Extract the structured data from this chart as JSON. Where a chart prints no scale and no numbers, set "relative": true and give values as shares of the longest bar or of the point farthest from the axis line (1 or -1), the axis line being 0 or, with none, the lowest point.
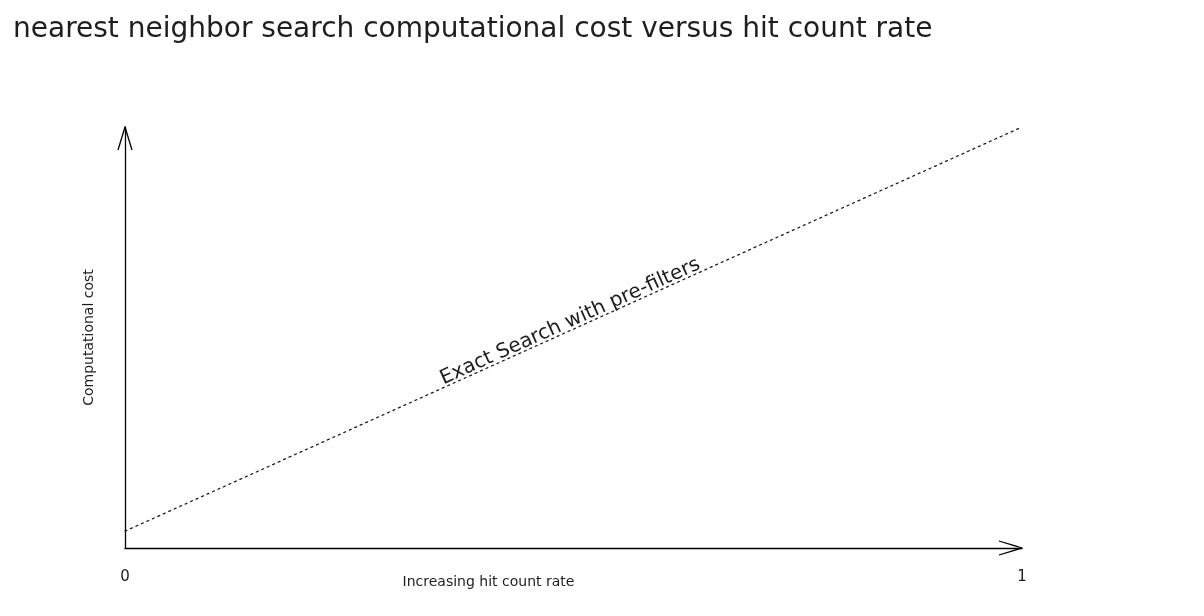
{
  "chart_data": {
    "type": "line",
    "title": "nearest neighbor search computational cost versus hit count rate",
    "xlabel": "Increasing hit count rate",
    "ylabel": "Computational cost",
    "relative": true,
    "x": [
      0,
      1
    ],
    "xlim": [
      0,
      1
    ],
    "xticks": [
      0,
      1
    ],
    "series": [
      {
        "name": "Exact Search with pre-filters",
        "color": "#1e1e1e",
        "values": [
          0.04,
          1
        ]
      }
    ],
    "line_style": "dotted",
    "marker": "none",
    "grid": false,
    "legend": false
  }
}
